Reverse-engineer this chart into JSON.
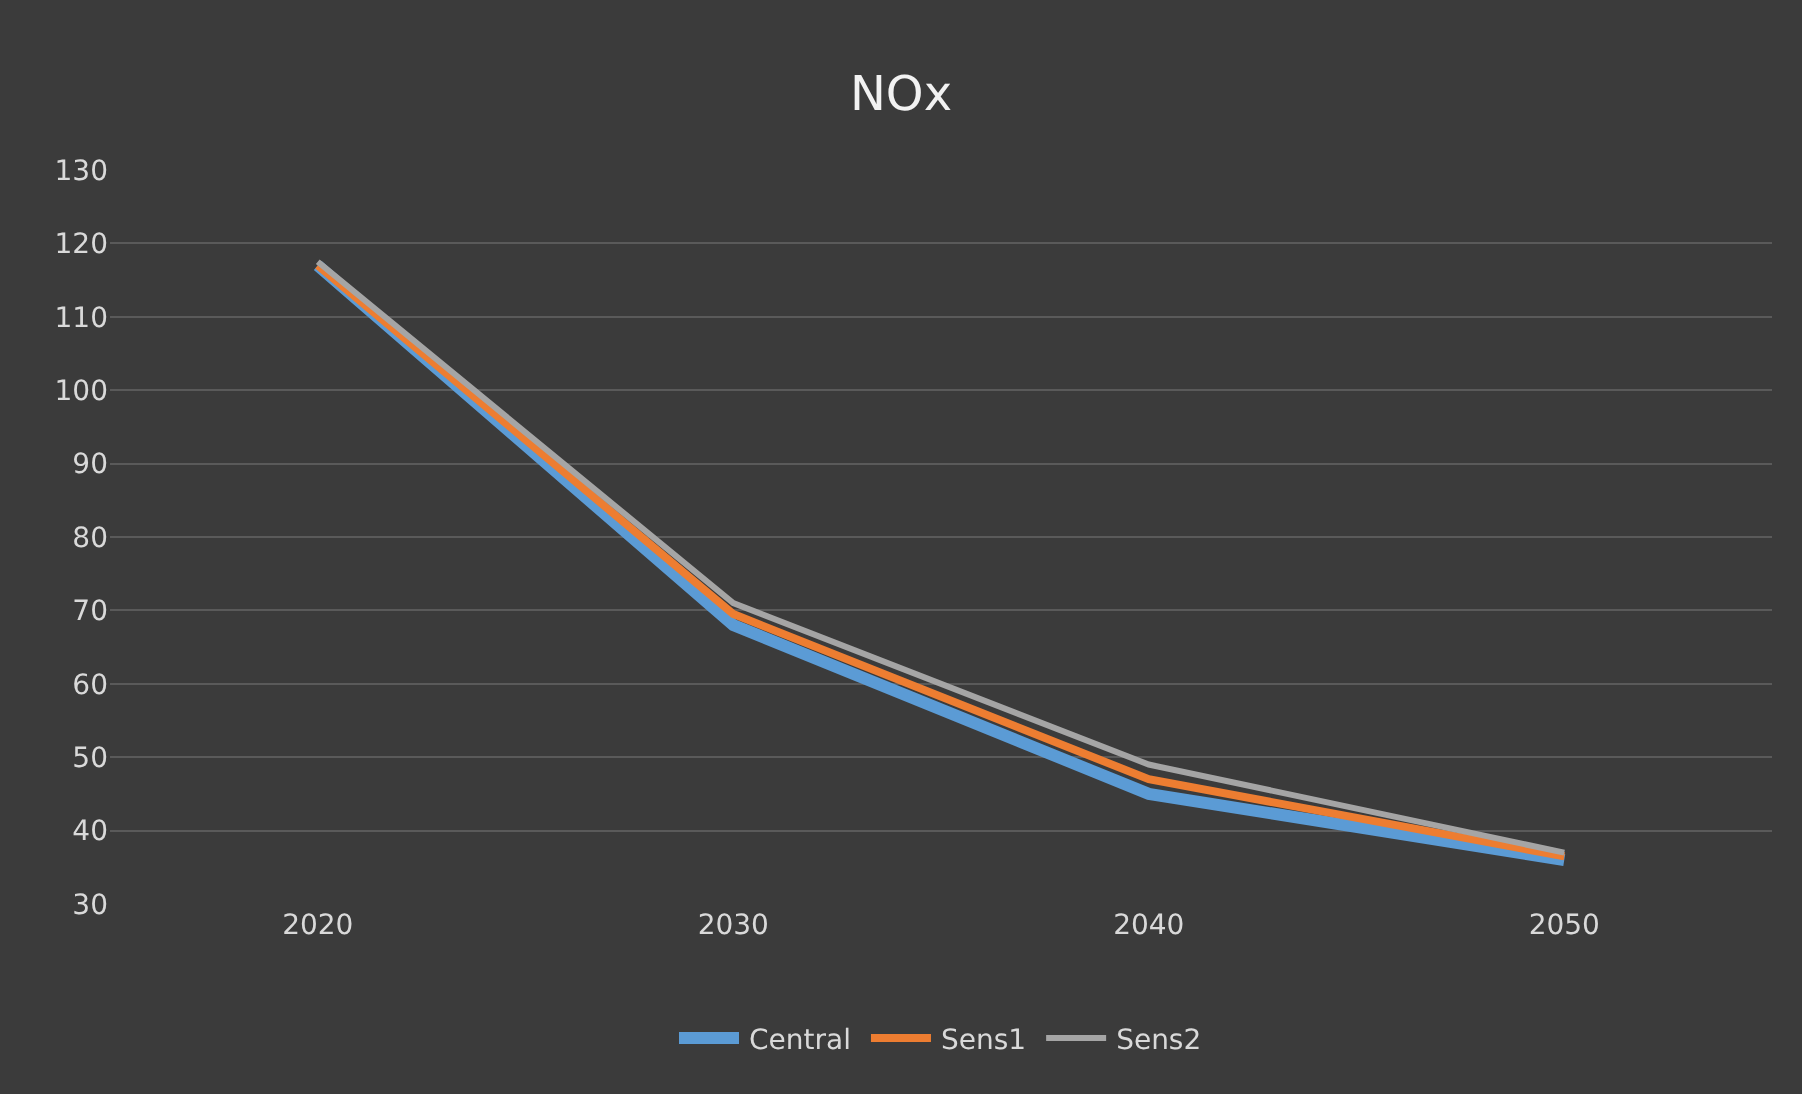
{
  "chart_data": {
    "type": "line",
    "title": "NOx",
    "categories": [
      "2020",
      "2030",
      "2040",
      "2050"
    ],
    "series": [
      {
        "name": "Central",
        "color": "#5b9bd5",
        "values": [
          117,
          68,
          45,
          36
        ]
      },
      {
        "name": "Sens1",
        "color": "#ed7d31",
        "values": [
          117,
          69.5,
          47,
          36.5
        ]
      },
      {
        "name": "Sens2",
        "color": "#a5a5a5",
        "values": [
          117.5,
          71,
          49,
          37
        ]
      }
    ],
    "ylim": [
      30,
      130
    ],
    "yticks": [
      30,
      40,
      50,
      60,
      70,
      80,
      90,
      100,
      110,
      120,
      130
    ],
    "grid": "y",
    "legend": "bottom",
    "marker": "none",
    "line_style": "solid"
  }
}
